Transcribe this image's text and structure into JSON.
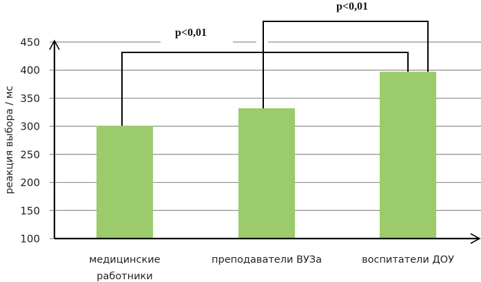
{
  "chart_data": {
    "type": "bar",
    "title": "",
    "xlabel": "",
    "ylabel": "реакция выбора / мс",
    "categories": [
      "медицинские работники",
      "преподаватели ВУЗа",
      "воспитатели ДОУ"
    ],
    "category_lines": [
      [
        "медицинские",
        "работники"
      ],
      [
        "преподаватели ВУЗа"
      ],
      [
        "воспитатели ДОУ"
      ]
    ],
    "values": [
      301,
      332,
      397
    ],
    "ylim": [
      100,
      450
    ],
    "yticks": [
      100,
      150,
      200,
      250,
      300,
      350,
      400,
      450
    ],
    "grid": true,
    "legend": null,
    "bar_color": "#9BCB6A",
    "annotations": [
      {
        "label": "p<0,01",
        "from": 0,
        "to": 2
      },
      {
        "label": "p<0,01",
        "from": 1,
        "to": 2
      }
    ]
  }
}
